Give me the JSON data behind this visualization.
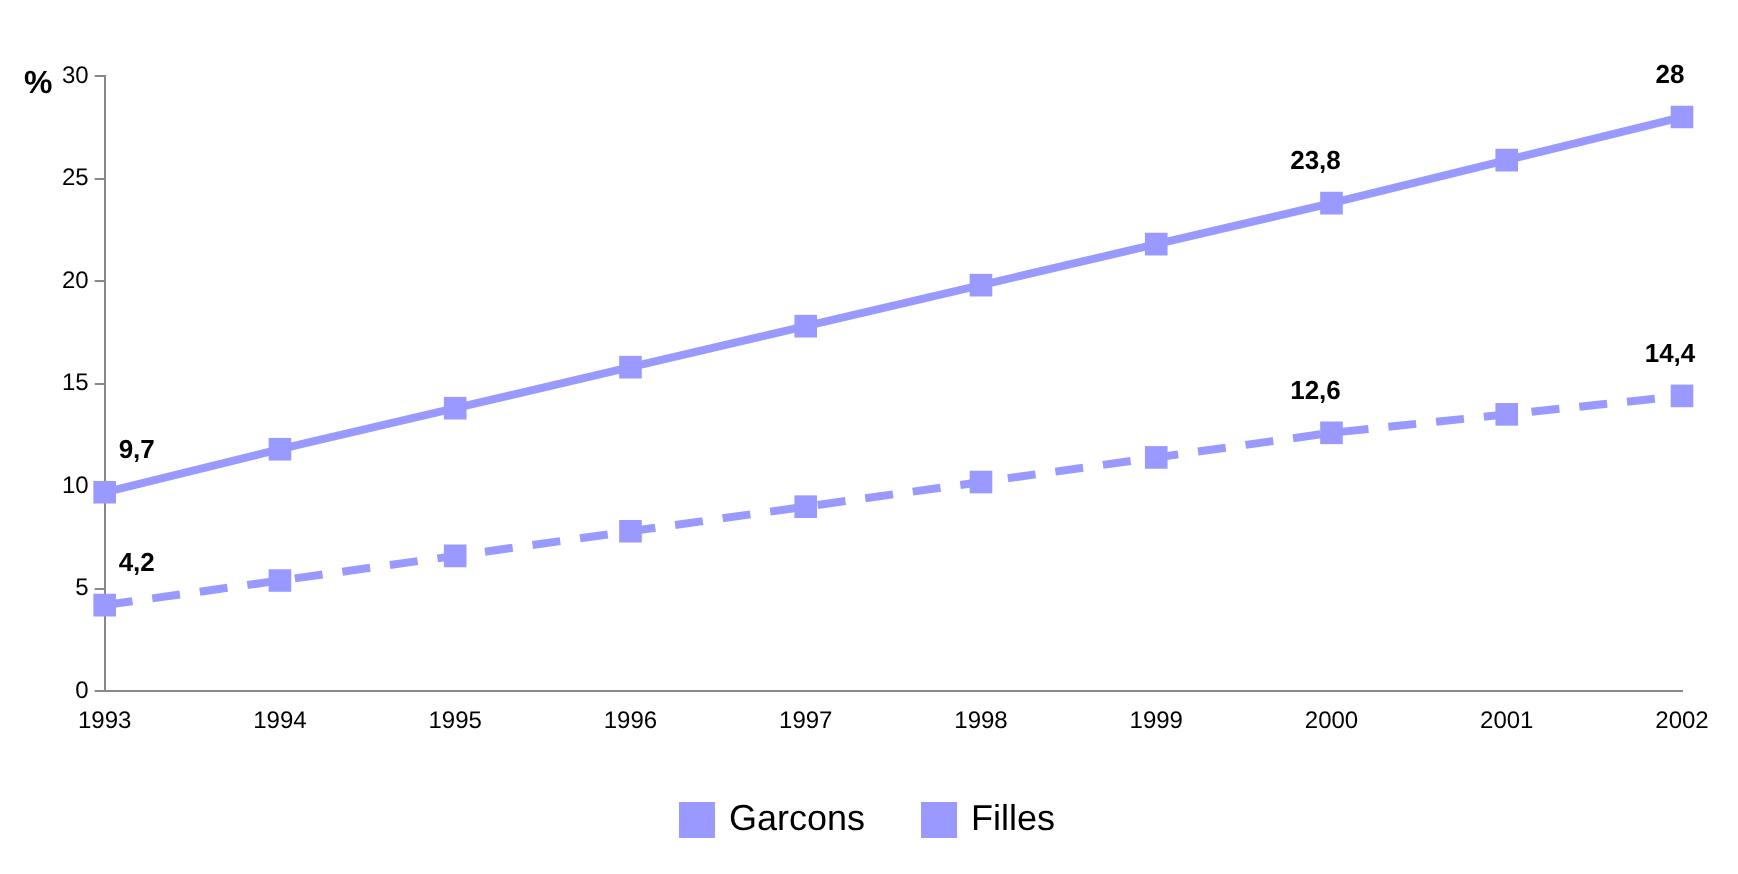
{
  "chart_data": {
    "type": "line",
    "ylabel": "%",
    "categories": [
      "1993",
      "1994",
      "1995",
      "1996",
      "1997",
      "1998",
      "1999",
      "2000",
      "2001",
      "2002"
    ],
    "series": [
      {
        "name": "Garcons",
        "color": "#9999ff",
        "line_style": "solid",
        "values": [
          9.7,
          11.8,
          13.8,
          15.8,
          17.8,
          19.8,
          21.8,
          23.8,
          25.9,
          28
        ],
        "value_labels": [
          "9,7",
          null,
          null,
          null,
          null,
          null,
          null,
          "23,8",
          null,
          "28"
        ]
      },
      {
        "name": "Filles",
        "color": "#9999ff",
        "line_style": "dashed",
        "values": [
          4.2,
          5.4,
          6.6,
          7.8,
          9.0,
          10.2,
          11.4,
          12.6,
          13.5,
          14.4
        ],
        "value_labels": [
          "4,2",
          null,
          null,
          null,
          null,
          null,
          null,
          "12,6",
          null,
          "14,4"
        ]
      }
    ],
    "ylim": [
      0,
      30
    ],
    "yticks": [
      0,
      5,
      10,
      15,
      20,
      25,
      30
    ],
    "grid": false,
    "legend": "bottom",
    "marker": "square"
  }
}
